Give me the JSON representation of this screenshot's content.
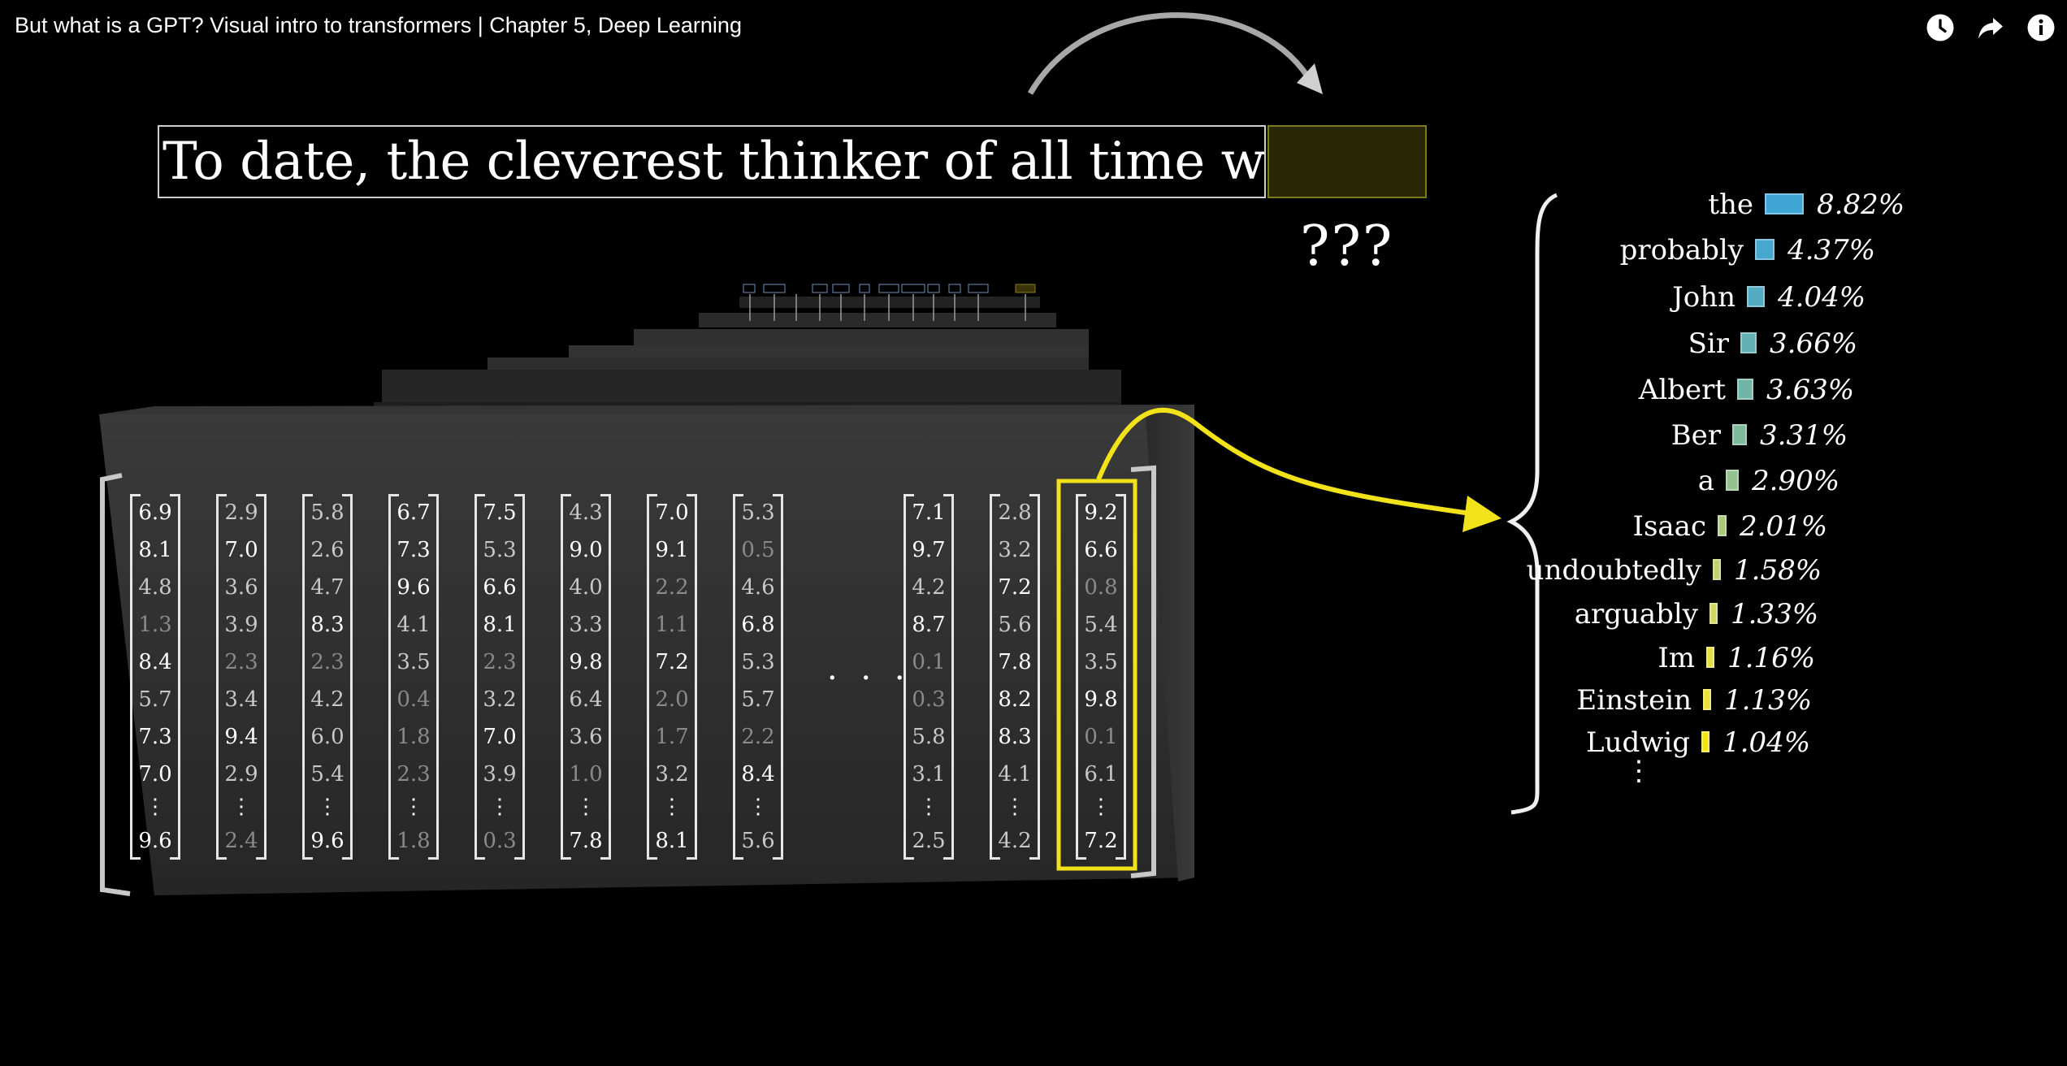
{
  "video": {
    "title": "But what is a GPT? Visual intro to transformers | Chapter 5, Deep Learning"
  },
  "controls": {
    "watch_later_icon": "clock-icon",
    "share_icon": "share-arrow-icon",
    "info_icon": "info-icon"
  },
  "scene": {
    "sentence": "To date, the cleverest thinker of all time was",
    "unknown_token": "???",
    "ellipsis": "· · ·",
    "vertical_ellipsis": "⋮",
    "highlight_color": "#f2e21a",
    "box_fill_color": "#2a2608"
  },
  "vectors": [
    [
      "6.9",
      "8.1",
      "4.8",
      "1.3",
      "8.4",
      "5.7",
      "7.3",
      "7.0",
      "⋮",
      "9.6"
    ],
    [
      "2.9",
      "7.0",
      "3.6",
      "3.9",
      "2.3",
      "3.4",
      "9.4",
      "2.9",
      "⋮",
      "2.4"
    ],
    [
      "5.8",
      "2.6",
      "4.7",
      "8.3",
      "2.3",
      "4.2",
      "6.0",
      "5.4",
      "⋮",
      "9.6"
    ],
    [
      "6.7",
      "7.3",
      "9.6",
      "4.1",
      "3.5",
      "0.4",
      "1.8",
      "2.3",
      "⋮",
      "1.8"
    ],
    [
      "7.5",
      "5.3",
      "6.6",
      "8.1",
      "2.3",
      "3.2",
      "7.0",
      "3.9",
      "⋮",
      "0.3"
    ],
    [
      "4.3",
      "9.0",
      "4.0",
      "3.3",
      "9.8",
      "6.4",
      "3.6",
      "1.0",
      "⋮",
      "7.8"
    ],
    [
      "7.0",
      "9.1",
      "2.2",
      "1.1",
      "7.2",
      "2.0",
      "1.7",
      "3.2",
      "⋮",
      "8.1"
    ],
    [
      "5.3",
      "0.5",
      "4.6",
      "6.8",
      "5.3",
      "5.7",
      "2.2",
      "8.4",
      "⋮",
      "5.6"
    ],
    [
      "7.1",
      "9.7",
      "4.2",
      "8.7",
      "0.1",
      "0.3",
      "5.8",
      "3.1",
      "⋮",
      "2.5"
    ],
    [
      "2.8",
      "3.2",
      "7.2",
      "5.6",
      "7.8",
      "8.2",
      "8.3",
      "4.1",
      "⋮",
      "4.2"
    ],
    [
      "9.2",
      "6.6",
      "0.8",
      "5.4",
      "3.5",
      "9.8",
      "0.1",
      "6.1",
      "⋮",
      "7.2"
    ]
  ],
  "predictions": [
    {
      "word": "the",
      "pct": "8.82%",
      "value": 8.82,
      "color": "#3fa6d6"
    },
    {
      "word": "probably",
      "pct": "4.37%",
      "value": 4.37,
      "color": "#47a7cf"
    },
    {
      "word": "John",
      "pct": "4.04%",
      "value": 4.04,
      "color": "#55abc2"
    },
    {
      "word": "Sir",
      "pct": "3.66%",
      "value": 3.66,
      "color": "#62afb4"
    },
    {
      "word": "Albert",
      "pct": "3.63%",
      "value": 3.63,
      "color": "#70b4a8"
    },
    {
      "word": "Ber",
      "pct": "3.31%",
      "value": 3.31,
      "color": "#80ba9d"
    },
    {
      "word": "a",
      "pct": "2.90%",
      "value": 2.9,
      "color": "#94c18f"
    },
    {
      "word": "Isaac",
      "pct": "2.01%",
      "value": 2.01,
      "color": "#a9c97f"
    },
    {
      "word": "undoubtedly",
      "pct": "1.58%",
      "value": 1.58,
      "color": "#bfd26e"
    },
    {
      "word": "arguably",
      "pct": "1.33%",
      "value": 1.33,
      "color": "#d2d95d"
    },
    {
      "word": "Im",
      "pct": "1.16%",
      "value": 1.16,
      "color": "#e3df47"
    },
    {
      "word": "Einstein",
      "pct": "1.13%",
      "value": 1.13,
      "color": "#ece234"
    },
    {
      "word": "Ludwig",
      "pct": "1.04%",
      "value": 1.04,
      "color": "#f2e21a"
    }
  ]
}
